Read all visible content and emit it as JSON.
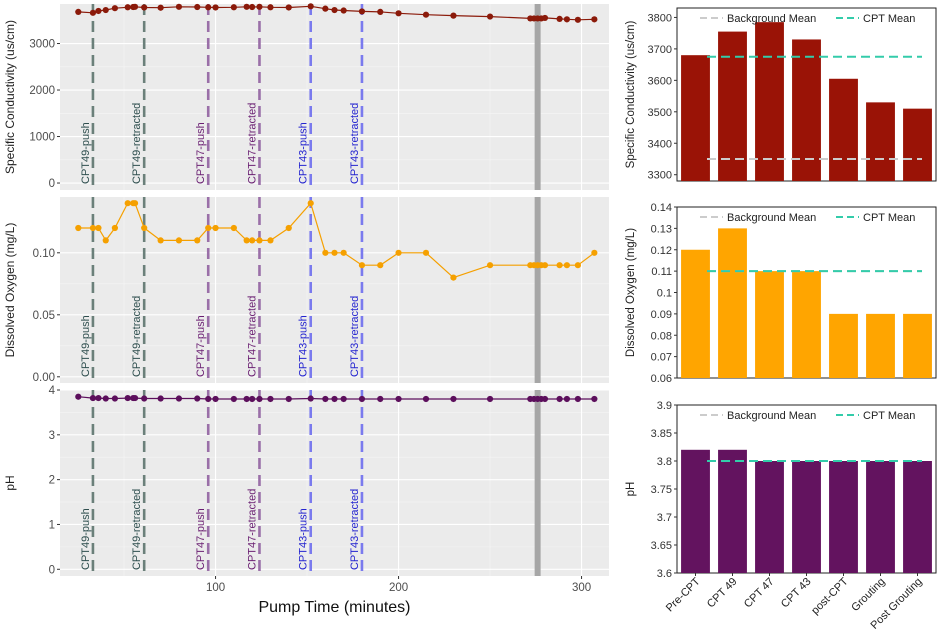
{
  "colors": {
    "panel_bg": "#ebebeb",
    "grid": "#ffffff",
    "conductivity": "#8b1a0a",
    "oxygen": "#f5a000",
    "ph": "#5c0f5c",
    "bar_conductivity": "#9a1306",
    "bar_oxygen": "#ffa500",
    "bar_ph": "#63135f",
    "cpt49": "#6b807a",
    "cpt47": "#9a6fa8",
    "cpt43": "#7a7aee",
    "cpt49_text": "#2f4f4f",
    "cpt47_text": "#6a1f72",
    "cpt43_text": "#2424d0",
    "bg_mean": "#cccccc",
    "cpt_mean": "#33ccaa",
    "gray_band": "#a6a6a6"
  },
  "chart_data": [
    {
      "type": "line",
      "title": "",
      "ylabel": "Specific Conductivity (us/cm)",
      "xlim": [
        15,
        315
      ],
      "ylim": [
        -150,
        3850
      ],
      "yticks": [
        0,
        1000,
        2000,
        3000
      ],
      "ytick_labels": [
        "0",
        "1000",
        "2000",
        "3000"
      ],
      "x": [
        25,
        33,
        36,
        40,
        45,
        52,
        55,
        56,
        61,
        70,
        80,
        90,
        96,
        100,
        110,
        117,
        120,
        124,
        130,
        140,
        152,
        160,
        165,
        170,
        180,
        190,
        200,
        215,
        230,
        250,
        272,
        274,
        276,
        278,
        280,
        288,
        292,
        298,
        307
      ],
      "values": [
        3680,
        3660,
        3700,
        3720,
        3760,
        3780,
        3785,
        3790,
        3775,
        3770,
        3790,
        3785,
        3780,
        3775,
        3780,
        3790,
        3785,
        3790,
        3780,
        3775,
        3800,
        3750,
        3720,
        3710,
        3690,
        3680,
        3650,
        3620,
        3600,
        3580,
        3540,
        3540,
        3540,
        3540,
        3550,
        3530,
        3520,
        3510,
        3520
      ]
    },
    {
      "type": "line",
      "title": "",
      "ylabel": "Dissolved Oxygen (mg/L)",
      "xlim": [
        15,
        315
      ],
      "ylim": [
        -0.005,
        0.145
      ],
      "yticks": [
        0.0,
        0.05,
        0.1
      ],
      "ytick_labels": [
        "0.00",
        "0.05",
        "0.10"
      ],
      "x": [
        25,
        33,
        36,
        40,
        45,
        52,
        55,
        56,
        61,
        70,
        80,
        90,
        96,
        100,
        110,
        117,
        120,
        124,
        130,
        140,
        152,
        160,
        165,
        170,
        180,
        190,
        200,
        215,
        230,
        250,
        272,
        274,
        276,
        278,
        280,
        288,
        292,
        298,
        307
      ],
      "values": [
        0.12,
        0.12,
        0.12,
        0.11,
        0.12,
        0.14,
        0.14,
        0.14,
        0.12,
        0.11,
        0.11,
        0.11,
        0.12,
        0.12,
        0.12,
        0.11,
        0.11,
        0.11,
        0.11,
        0.12,
        0.14,
        0.1,
        0.1,
        0.1,
        0.09,
        0.09,
        0.1,
        0.1,
        0.08,
        0.09,
        0.09,
        0.09,
        0.09,
        0.09,
        0.09,
        0.09,
        0.09,
        0.09,
        0.1
      ]
    },
    {
      "type": "line",
      "title": "",
      "ylabel": "pH",
      "xlim": [
        15,
        315
      ],
      "ylim": [
        -0.15,
        4.0
      ],
      "yticks": [
        0,
        1,
        2,
        3,
        4
      ],
      "ytick_labels": [
        "0",
        "1",
        "2",
        "3",
        "4"
      ],
      "xticks": [
        100,
        200,
        300
      ],
      "xtick_labels": [
        "100",
        "200",
        "300"
      ],
      "xlabel": "Pump Time (minutes)",
      "x": [
        25,
        33,
        36,
        40,
        45,
        52,
        55,
        56,
        61,
        70,
        80,
        90,
        96,
        100,
        110,
        117,
        120,
        124,
        130,
        140,
        152,
        160,
        165,
        170,
        180,
        190,
        200,
        215,
        230,
        250,
        272,
        274,
        276,
        278,
        280,
        288,
        292,
        298,
        307
      ],
      "values": [
        3.85,
        3.82,
        3.82,
        3.81,
        3.81,
        3.82,
        3.82,
        3.82,
        3.81,
        3.81,
        3.81,
        3.81,
        3.8,
        3.8,
        3.8,
        3.8,
        3.8,
        3.8,
        3.8,
        3.8,
        3.81,
        3.8,
        3.8,
        3.8,
        3.8,
        3.8,
        3.8,
        3.8,
        3.8,
        3.8,
        3.8,
        3.8,
        3.8,
        3.8,
        3.8,
        3.8,
        3.8,
        3.8,
        3.8
      ]
    },
    {
      "type": "bar",
      "ylabel": "Specific Conductivity (us/cm)",
      "ylim": [
        3280,
        3830
      ],
      "yticks": [
        3300,
        3400,
        3500,
        3600,
        3700,
        3800
      ],
      "ytick_labels": [
        "3300",
        "3400",
        "3500",
        "3600",
        "3700",
        "3800"
      ],
      "categories": [
        "Pre-CPT",
        "CPT 49",
        "CPT 47",
        "CPT 43",
        "post-CPT",
        "Grouting",
        "Post Grouting"
      ],
      "values": [
        3680,
        3755,
        3785,
        3730,
        3605,
        3530,
        3510
      ],
      "background_mean": 3350,
      "cpt_mean": 3675
    },
    {
      "type": "bar",
      "ylabel": "Dissolved Oxygen (mg/L)",
      "ylim": [
        0.06,
        0.14
      ],
      "yticks": [
        0.06,
        0.07,
        0.08,
        0.09,
        0.1,
        0.11,
        0.12,
        0.13,
        0.14
      ],
      "ytick_labels": [
        "0.06",
        "0.07",
        "0.08",
        "0.09",
        "0.1",
        "0.11",
        "0.12",
        "0.13",
        "0.14"
      ],
      "categories": [
        "Pre-CPT",
        "CPT 49",
        "CPT 47",
        "CPT 43",
        "post-CPT",
        "Grouting",
        "Post Grouting"
      ],
      "values": [
        0.12,
        0.13,
        0.11,
        0.11,
        0.09,
        0.09,
        0.09
      ],
      "background_mean": 0.11,
      "cpt_mean": 0.11
    },
    {
      "type": "bar",
      "ylabel": "pH",
      "ylim": [
        3.6,
        3.9
      ],
      "yticks": [
        3.6,
        3.65,
        3.7,
        3.75,
        3.8,
        3.85,
        3.9
      ],
      "ytick_labels": [
        "3.6",
        "3.65",
        "3.7",
        "3.75",
        "3.8",
        "3.85",
        "3.9"
      ],
      "categories": [
        "Pre-CPT",
        "CPT 49",
        "CPT 47",
        "CPT 43",
        "post-CPT",
        "Grouting",
        "Post Grouting"
      ],
      "values": [
        3.82,
        3.82,
        3.8,
        3.8,
        3.8,
        3.8,
        3.8
      ],
      "background_mean": 3.8,
      "cpt_mean": 3.8
    }
  ],
  "events": [
    {
      "label": "CPT49-push",
      "x": 33,
      "group": "cpt49"
    },
    {
      "label": "CPT49-retracted",
      "x": 61,
      "group": "cpt49"
    },
    {
      "label": "CPT47-push",
      "x": 96,
      "group": "cpt47"
    },
    {
      "label": "CPT47-retracted",
      "x": 124,
      "group": "cpt47"
    },
    {
      "label": "CPT43-push",
      "x": 152,
      "group": "cpt43"
    },
    {
      "label": "CPT43-retracted",
      "x": 180,
      "group": "cpt43"
    }
  ],
  "gray_band_x": 276,
  "legend": {
    "background_mean": "Background Mean",
    "cpt_mean": "CPT Mean"
  }
}
